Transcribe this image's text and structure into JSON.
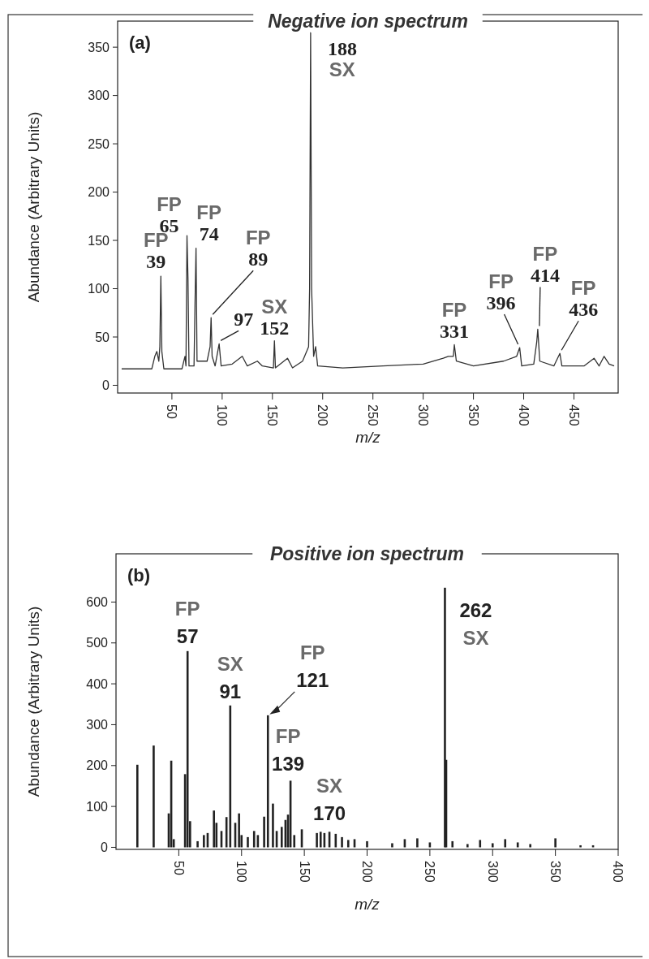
{
  "chart_data": [
    {
      "type": "line",
      "title": "Negative ion spectrum",
      "xlabel": "m/z",
      "ylabel": "Abundance (Arbitrary Units)",
      "color": "#333333",
      "xlim": [
        -4,
        494
      ],
      "ylim": [
        -8,
        377
      ],
      "xticks": [
        50,
        100,
        150,
        200,
        250,
        300,
        350,
        400,
        450
      ],
      "yticks": [
        0,
        50,
        100,
        150,
        200,
        250,
        300,
        350
      ],
      "x": [
        0,
        30,
        33,
        35,
        37,
        38,
        39,
        40,
        42,
        60,
        63,
        64,
        65,
        66,
        67,
        72,
        73,
        74,
        75,
        85,
        88,
        89,
        90,
        93,
        97,
        99,
        110,
        120,
        125,
        135,
        140,
        151,
        152,
        153,
        165,
        170,
        180,
        186,
        187,
        188,
        189,
        191,
        193,
        195,
        220,
        260,
        300,
        320,
        325,
        330,
        331,
        333,
        350,
        380,
        393,
        396,
        398,
        410,
        413,
        414,
        416,
        430,
        436,
        438,
        460,
        470,
        475,
        480,
        485,
        490
      ],
      "values": [
        17,
        17,
        30,
        35,
        25,
        40,
        113,
        35,
        17,
        17,
        30,
        20,
        155,
        110,
        20,
        20,
        85,
        142,
        25,
        25,
        40,
        70,
        30,
        20,
        43,
        20,
        22,
        30,
        20,
        25,
        20,
        18,
        46,
        18,
        28,
        18,
        25,
        40,
        100,
        365,
        100,
        30,
        40,
        20,
        18,
        20,
        22,
        28,
        30,
        30,
        42,
        25,
        20,
        25,
        30,
        39,
        20,
        22,
        45,
        58,
        25,
        20,
        33,
        20,
        20,
        28,
        20,
        30,
        22,
        20
      ],
      "annotations": [
        "(a)",
        {
          "text": "FP\n39",
          "x": 39,
          "y": 113
        },
        {
          "text": "FP\n65",
          "x": 65,
          "y": 155
        },
        {
          "text": "FP\n74",
          "x": 74,
          "y": 142
        },
        {
          "text": "FP\n89",
          "x": 89,
          "y": 70
        },
        {
          "text": "97",
          "x": 97,
          "y": 43
        },
        {
          "text": "SX\n152",
          "x": 152,
          "y": 46
        },
        {
          "text": "188\nSX",
          "x": 188,
          "y": 365
        },
        {
          "text": "FP\n331",
          "x": 331,
          "y": 42
        },
        {
          "text": "FP\n396",
          "x": 396,
          "y": 39
        },
        {
          "text": "FP\n414",
          "x": 414,
          "y": 58
        },
        {
          "text": "FP\n436",
          "x": 436,
          "y": 33
        }
      ]
    },
    {
      "type": "bar",
      "title": "Positive ion spectrum",
      "xlabel": "m/z",
      "ylabel": "Abundance (Arbitrary Units)",
      "color": "#222222",
      "xlim": [
        0,
        400
      ],
      "ylim": [
        -5,
        718
      ],
      "xticks": [
        50,
        100,
        150,
        200,
        250,
        300,
        350,
        400
      ],
      "yticks": [
        0,
        100,
        200,
        300,
        400,
        500,
        600
      ],
      "x": [
        17,
        30,
        42,
        44,
        46,
        55,
        57,
        59,
        65,
        70,
        73,
        78,
        80,
        84,
        88,
        91,
        95,
        98,
        100,
        105,
        110,
        113,
        118,
        121,
        125,
        128,
        132,
        135,
        137,
        139,
        142,
        148,
        160,
        163,
        166,
        170,
        175,
        180,
        185,
        190,
        200,
        220,
        230,
        240,
        250,
        262,
        263,
        268,
        280,
        290,
        300,
        310,
        320,
        330,
        350,
        370,
        380
      ],
      "values": [
        202,
        249,
        83,
        212,
        20,
        179,
        480,
        64,
        15,
        30,
        35,
        90,
        60,
        40,
        74,
        347,
        60,
        83,
        30,
        25,
        40,
        30,
        75,
        323,
        107,
        40,
        50,
        67,
        80,
        163,
        30,
        44,
        35,
        38,
        35,
        38,
        33,
        25,
        18,
        20,
        15,
        10,
        20,
        22,
        12,
        635,
        214,
        15,
        8,
        18,
        10,
        20,
        12,
        8,
        22,
        5,
        5
      ],
      "annotations": [
        "(b)",
        {
          "text": "FP\n57",
          "x": 57,
          "y": 480
        },
        {
          "text": "SX\n91",
          "x": 91,
          "y": 347
        },
        {
          "text": "FP\n121",
          "x": 121,
          "y": 323
        },
        {
          "text": "FP\n139",
          "x": 139,
          "y": 163
        },
        {
          "text": "SX\n170",
          "x": 170,
          "y": 38
        },
        {
          "text": "262\nSX",
          "x": 262,
          "y": 635
        }
      ]
    }
  ]
}
